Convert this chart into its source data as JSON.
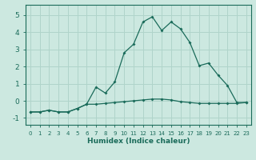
{
  "xlabel": "Humidex (Indice chaleur)",
  "ylabel": "",
  "background_color": "#cce8e0",
  "grid_color": "#b0d4ca",
  "line_color": "#1a6b5a",
  "xlim": [
    -0.5,
    23.5
  ],
  "ylim": [
    -1.4,
    5.6
  ],
  "xticks": [
    0,
    1,
    2,
    3,
    4,
    5,
    6,
    7,
    8,
    9,
    10,
    11,
    12,
    13,
    14,
    15,
    16,
    17,
    18,
    19,
    20,
    21,
    22,
    23
  ],
  "yticks": [
    -1,
    0,
    1,
    2,
    3,
    4,
    5
  ],
  "line1_x": [
    0,
    1,
    2,
    3,
    4,
    5,
    6,
    7,
    8,
    9,
    10,
    11,
    12,
    13,
    14,
    15,
    16,
    17,
    18,
    19,
    20,
    21,
    22,
    23
  ],
  "line1_y": [
    -0.65,
    -0.65,
    -0.55,
    -0.65,
    -0.65,
    -0.45,
    -0.2,
    -0.2,
    -0.15,
    -0.1,
    -0.05,
    0.0,
    0.05,
    0.1,
    0.1,
    0.05,
    -0.05,
    -0.1,
    -0.15,
    -0.15,
    -0.15,
    -0.15,
    -0.15,
    -0.1
  ],
  "line2_x": [
    0,
    1,
    2,
    3,
    4,
    5,
    6,
    7,
    8,
    9,
    10,
    11,
    12,
    13,
    14,
    15,
    16,
    17,
    18,
    19,
    20,
    21,
    22,
    23
  ],
  "line2_y": [
    -0.65,
    -0.65,
    -0.55,
    -0.65,
    -0.65,
    -0.45,
    -0.2,
    0.8,
    0.45,
    1.1,
    2.8,
    3.3,
    4.6,
    4.9,
    4.1,
    4.6,
    4.2,
    3.4,
    2.05,
    2.2,
    1.5,
    0.9,
    -0.1,
    -0.1
  ]
}
